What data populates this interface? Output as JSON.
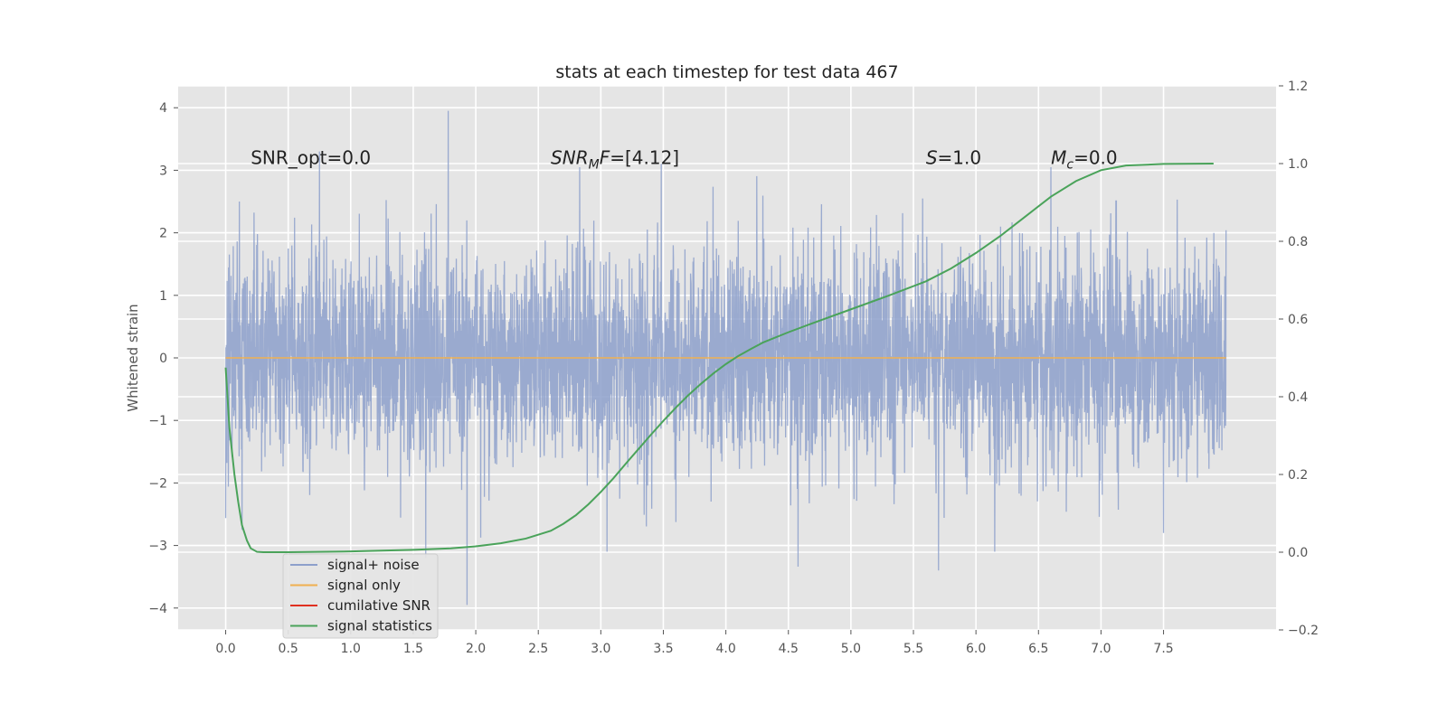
{
  "chart_data": {
    "type": "line",
    "title": "stats at each timestep for test data 467",
    "ylabel": "Whitened strain",
    "xlim": [
      -0.38,
      8.4
    ],
    "ylim": [
      -4.35,
      4.35
    ],
    "y2lim": [
      -0.2,
      1.2
    ],
    "grid": true,
    "x_ticks": [
      0.0,
      0.5,
      1.0,
      1.5,
      2.0,
      2.5,
      3.0,
      3.5,
      4.0,
      4.5,
      5.0,
      5.5,
      6.0,
      6.5,
      7.0,
      7.5
    ],
    "x_tick_labels": [
      "0.0",
      "0.5",
      "1.0",
      "1.5",
      "2.0",
      "2.5",
      "3.0",
      "3.5",
      "4.0",
      "4.5",
      "5.0",
      "5.5",
      "6.0",
      "6.5",
      "7.0",
      "7.5"
    ],
    "y_ticks": [
      4,
      3,
      2,
      1,
      0,
      -1,
      -2,
      -3,
      -4
    ],
    "y_tick_labels": [
      "4",
      "3",
      "2",
      "1",
      "0",
      "−1",
      "−2",
      "−3",
      "−4"
    ],
    "y2_ticks": [
      1.2,
      1.0,
      0.8,
      0.6,
      0.4,
      0.2,
      0.0,
      -0.2
    ],
    "y2_tick_labels": [
      "1.2",
      "1.0",
      "0.8",
      "0.6",
      "0.4",
      "0.2",
      "0.0",
      "−0.2"
    ],
    "annotations": [
      {
        "kind": "plain",
        "text": "SNR_opt=0.0",
        "x": 0.2,
        "y": 3.1
      },
      {
        "kind": "snrmf",
        "main": "SNR",
        "sub": "M",
        "rest": "F=[4.12]",
        "x": 2.6,
        "y": 3.1
      },
      {
        "kind": "italic",
        "main": "S",
        "rest": "=1.0",
        "x": 5.6,
        "y": 3.1
      },
      {
        "kind": "sub",
        "main": "M",
        "sub": "c",
        "rest": "=0.0",
        "x": 6.6,
        "y": 3.1
      }
    ],
    "legend": {
      "position": "lower left",
      "entries": [
        "signal+ noise",
        "signal only",
        "cumilative SNR",
        "signal statistics"
      ]
    },
    "series": [
      {
        "name": "signal+ noise",
        "axis": "left",
        "color": "#8da0cb",
        "kind": "noise",
        "x_range": [
          0.0,
          8.0
        ],
        "n_samples": 4096,
        "sigma": 0.85,
        "peaks": [
          {
            "x": 0.11,
            "y": 2.5
          },
          {
            "x": 0.75,
            "y": 3.3
          },
          {
            "x": 1.78,
            "y": 3.95
          },
          {
            "x": 2.83,
            "y": 3.05
          },
          {
            "x": 6.6,
            "y": 3.05
          },
          {
            "x": 1.93,
            "y": -3.95
          },
          {
            "x": 5.7,
            "y": -3.4
          },
          {
            "x": 6.15,
            "y": -3.1
          },
          {
            "x": 1.6,
            "y": -3.2
          },
          {
            "x": 3.05,
            "y": -3.1
          },
          {
            "x": 7.5,
            "y": -2.8
          },
          {
            "x": 0.13,
            "y": -2.75
          }
        ]
      },
      {
        "name": "signal only",
        "axis": "left",
        "color": "#f0b050",
        "x": [
          0.0,
          8.0
        ],
        "y": [
          0.0,
          0.0
        ]
      },
      {
        "name": "cumilative SNR",
        "axis": "left",
        "color": "#e03020",
        "x": [],
        "y": []
      },
      {
        "name": "signal statistics",
        "axis": "right",
        "color": "#4aa35a",
        "x": [
          0.0,
          0.03,
          0.07,
          0.1,
          0.13,
          0.17,
          0.2,
          0.25,
          0.3,
          0.4,
          0.5,
          1.0,
          1.5,
          1.8,
          2.0,
          2.2,
          2.4,
          2.6,
          2.7,
          2.8,
          2.9,
          3.0,
          3.1,
          3.2,
          3.3,
          3.4,
          3.5,
          3.6,
          3.7,
          3.8,
          3.9,
          4.0,
          4.1,
          4.2,
          4.3,
          4.5,
          4.7,
          5.0,
          5.3,
          5.6,
          5.8,
          6.0,
          6.2,
          6.4,
          6.6,
          6.8,
          7.0,
          7.2,
          7.5,
          7.9
        ],
        "y": [
          0.475,
          0.32,
          0.2,
          0.13,
          0.07,
          0.03,
          0.01,
          0.001,
          0.0,
          0.0,
          0.0,
          0.002,
          0.006,
          0.01,
          0.015,
          0.023,
          0.035,
          0.055,
          0.073,
          0.095,
          0.123,
          0.155,
          0.19,
          0.228,
          0.265,
          0.302,
          0.338,
          0.372,
          0.404,
          0.433,
          0.46,
          0.484,
          0.505,
          0.523,
          0.54,
          0.566,
          0.59,
          0.625,
          0.66,
          0.697,
          0.73,
          0.77,
          0.815,
          0.865,
          0.915,
          0.955,
          0.983,
          0.995,
          0.999,
          1.0
        ]
      }
    ]
  }
}
